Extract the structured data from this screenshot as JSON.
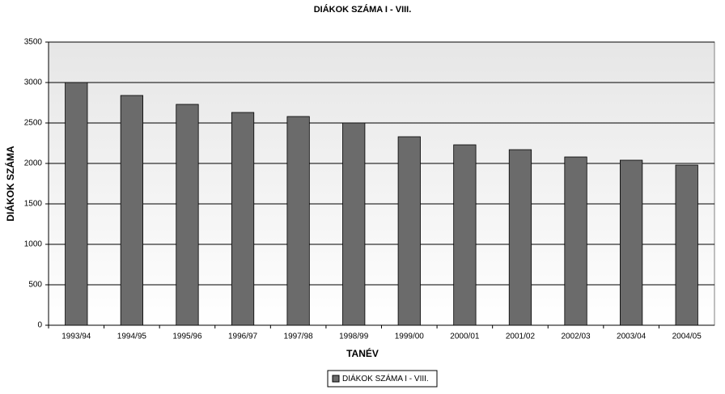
{
  "chart_data": {
    "type": "bar",
    "title": "DIÁKOK SZÁMA I - VIII.",
    "x_label": "TANÉV",
    "y_label": "DIÁKOK SZÁMA",
    "categories": [
      "1993/94",
      "1994/95",
      "1995/96",
      "1996/97",
      "1997/98",
      "1998/99",
      "1999/00",
      "2000/01",
      "2001/02",
      "2002/03",
      "2003/04",
      "2004/05"
    ],
    "series": [
      {
        "name": "DIÁKOK SZÁMA I - VIII.",
        "color": "#6b6b6b",
        "values": [
          3000,
          2840,
          2730,
          2630,
          2580,
          2500,
          2330,
          2230,
          2170,
          2080,
          2040,
          1980
        ]
      }
    ],
    "ylim": [
      0,
      3500
    ],
    "yticks": [
      0,
      500,
      1000,
      1500,
      2000,
      2500,
      3000,
      3500
    ],
    "grid": true,
    "legend": "bottom"
  }
}
